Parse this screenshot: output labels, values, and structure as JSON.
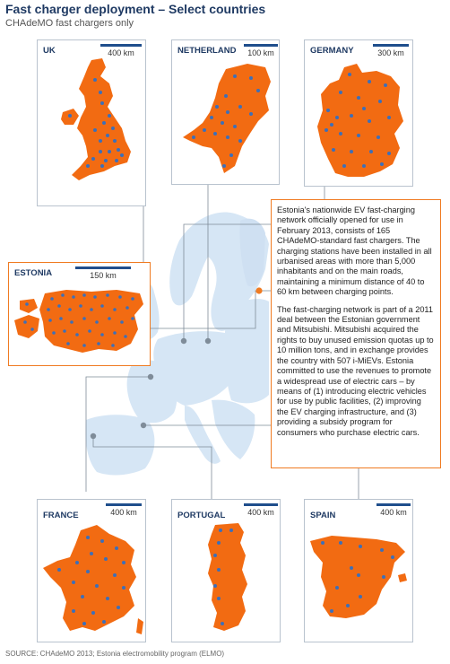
{
  "title": "Fast charger deployment – Select countries",
  "subtitle": "CHAdeMO fast chargers  only",
  "colors": {
    "land": "#f26b12",
    "charger": "#3d6fb8",
    "sea_land": "#d6e6f5",
    "accent": "#f07b22"
  },
  "countries": {
    "uk": {
      "name": "UK",
      "scale": "400 km"
    },
    "netherland": {
      "name": "NETHERLAND",
      "scale": "100 km"
    },
    "germany": {
      "name": "GERMANY",
      "scale": "300 km"
    },
    "estonia": {
      "name": "ESTONIA",
      "scale": "150 km"
    },
    "france": {
      "name": "FRANCE",
      "scale": "400 km"
    },
    "portugal": {
      "name": "PORTUGAL",
      "scale": "400 km"
    },
    "spain": {
      "name": "SPAIN",
      "scale": "400 km"
    }
  },
  "info": {
    "p1": "Estonia's nationwide EV fast-charging network officially opened for use in February 2013, consists of 165 CHAdeMO-standard fast chargers. The charging stations have been installed in all urbanised areas with more than 5,000 inhabitants and on the main roads, maintaining a minimum distance of 40 to 60 km between charging points.",
    "p2": "The fast-charging network is part of a 2011 deal between the Estonian government and Mitsubishi. Mitsubishi acquired the rights to buy unused emission quotas up to 10 million tons, and in exchange provides the country with 507 i-MiEVs. Estonia committed to use the revenues to promote a widespread use of electric cars – by means of (1) introducing electric vehicles for use by public facilities, (2) improving the EV charging infrastructure, and (3) providing a subsidy program for consumers who purchase electric cars."
  },
  "source": "SOURCE: CHAdeMO 2013; Estonia electromobility program (ELMO)"
}
